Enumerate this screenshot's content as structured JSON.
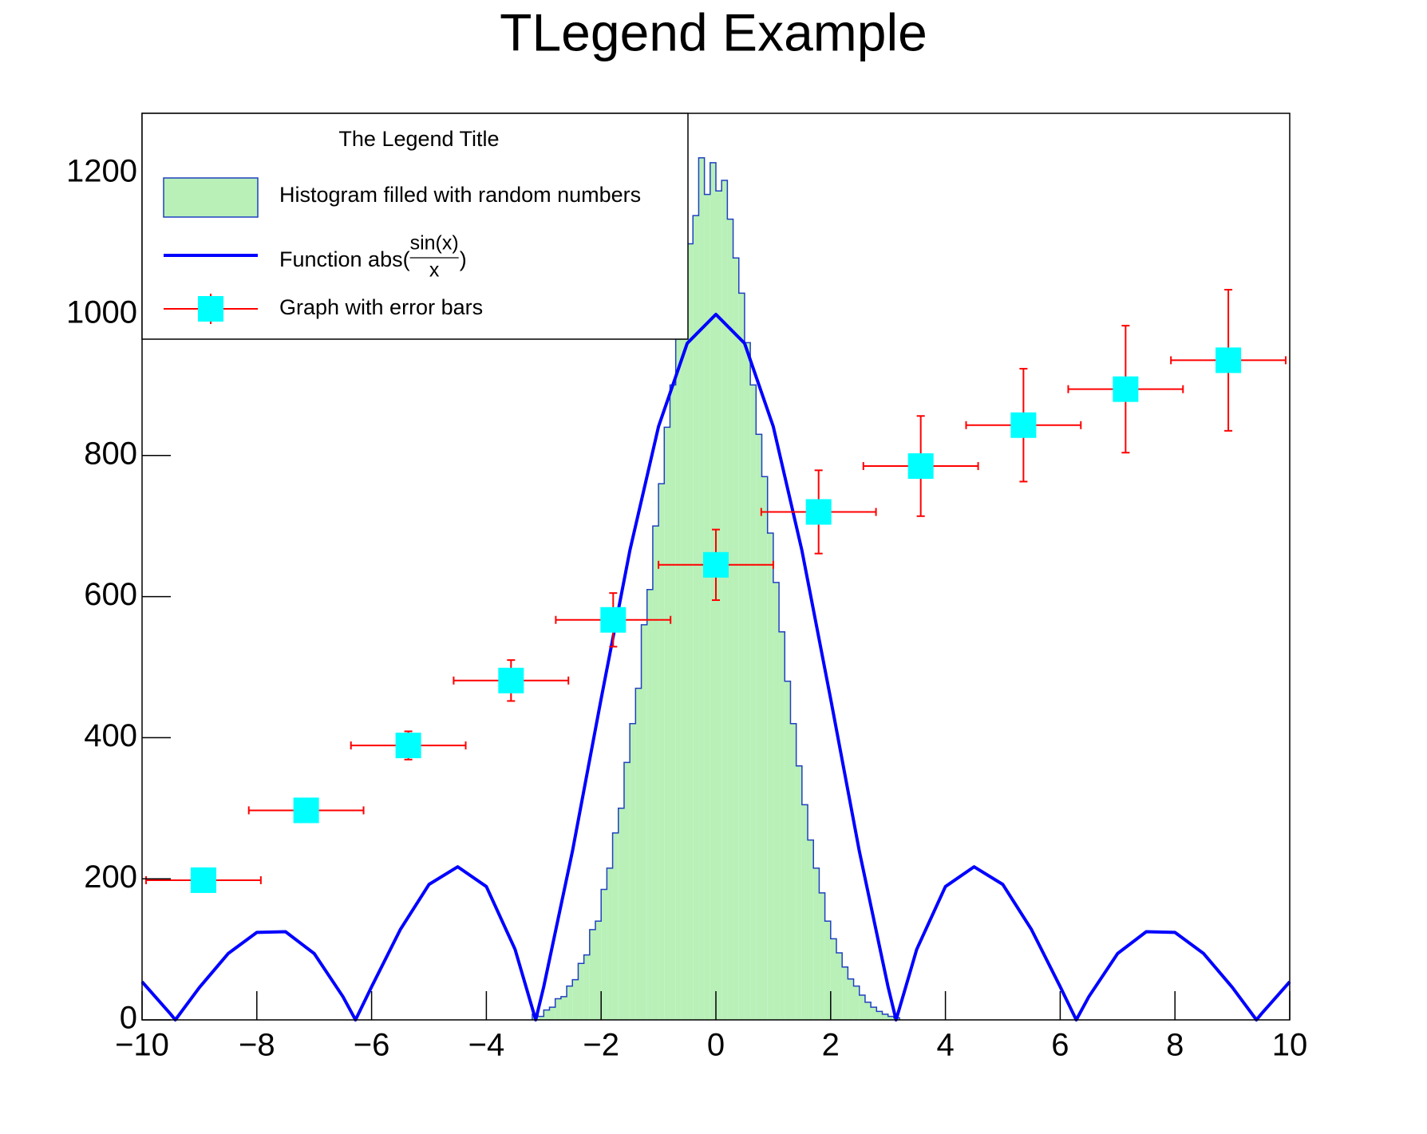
{
  "chart_data": [
    {
      "type": "histogram",
      "title": "TLegend Example",
      "bins": [
        -3.2,
        -3.1,
        -3.0,
        -2.9,
        -2.8,
        -2.7,
        -2.6,
        -2.5,
        -2.4,
        -2.3,
        -2.2,
        -2.1,
        -2.0,
        -1.9,
        -1.8,
        -1.7,
        -1.6,
        -1.5,
        -1.4,
        -1.3,
        -1.2,
        -1.1,
        -1.0,
        -0.9,
        -0.8,
        -0.7,
        -0.6,
        -0.5,
        -0.4,
        -0.3,
        -0.2,
        -0.1,
        0,
        0.1,
        0.2,
        0.3,
        0.4,
        0.5,
        0.6,
        0.7,
        0.8,
        0.9,
        1.0,
        1.1,
        1.2,
        1.3,
        1.4,
        1.5,
        1.6,
        1.7,
        1.8,
        1.9,
        2.0,
        2.1,
        2.2,
        2.3,
        2.4,
        2.5,
        2.6,
        2.7,
        2.8,
        2.9,
        3.0,
        3.1,
        3.2
      ],
      "values": [
        8,
        5,
        14,
        18,
        30,
        33,
        48,
        57,
        80,
        92,
        128,
        140,
        185,
        215,
        265,
        300,
        365,
        420,
        470,
        560,
        610,
        700,
        760,
        840,
        900,
        965,
        1050,
        1100,
        1140,
        1222,
        1170,
        1215,
        1175,
        1190,
        1135,
        1080,
        1030,
        960,
        900,
        830,
        770,
        690,
        620,
        550,
        480,
        420,
        360,
        305,
        255,
        215,
        180,
        140,
        115,
        95,
        75,
        58,
        48,
        35,
        25,
        18,
        12,
        8,
        5,
        3
      ],
      "name": "Histogram filled with random numbers",
      "color": "#b8f0b8",
      "edge_color": "#2040c0",
      "xlim": [
        -10,
        10
      ],
      "ylim": [
        0,
        1285
      ],
      "xticks": [
        {
          "value": -10,
          "label": "−10"
        },
        {
          "value": -8,
          "label": "−8"
        },
        {
          "value": -6,
          "label": "−6"
        },
        {
          "value": -4,
          "label": "−4"
        },
        {
          "value": -2,
          "label": "−2"
        },
        0,
        2,
        4,
        6,
        8,
        10
      ],
      "yticks": [
        0,
        200,
        400,
        600,
        800,
        1000,
        1200
      ]
    },
    {
      "type": "line",
      "name_parts": [
        "Function abs(",
        "sin(x)",
        "x",
        ")"
      ],
      "color": "#0000ff",
      "x": [
        -10,
        -9.5,
        -9.42,
        -9,
        -8.5,
        -8,
        -7.5,
        -7,
        -6.5,
        -6.28,
        -6,
        -5.5,
        -5,
        -4.5,
        -4,
        -3.5,
        -3.14,
        -3,
        -2.5,
        -2,
        -1.5,
        -1,
        -0.5,
        0,
        0.5,
        1,
        1.5,
        2,
        2.5,
        3,
        3.14,
        3.5,
        4,
        4.5,
        5,
        5.5,
        6,
        6.28,
        6.5,
        7,
        7.5,
        8,
        8.5,
        9,
        9.42,
        9.5,
        10
      ],
      "values": [
        54,
        8,
        0,
        46,
        94,
        124,
        125,
        94,
        33,
        0,
        47,
        128,
        192,
        217,
        189,
        100,
        0,
        47,
        239,
        455,
        665,
        841,
        959,
        1000,
        959,
        841,
        665,
        455,
        239,
        47,
        0,
        100,
        189,
        217,
        192,
        128,
        47,
        0,
        33,
        94,
        125,
        124,
        94,
        46,
        0,
        8,
        54
      ]
    },
    {
      "type": "scatter",
      "name": "Graph with error bars",
      "color": "#00ffff",
      "error_color": "#ff0000",
      "x": [
        -8.93,
        -7.14,
        -5.36,
        -3.57,
        -1.79,
        0,
        1.79,
        3.57,
        5.36,
        7.14,
        8.93
      ],
      "values": [
        198,
        297,
        389,
        481,
        567,
        645,
        720,
        785,
        843,
        894,
        935
      ],
      "x_errors": [
        1,
        1,
        1,
        1,
        1,
        1,
        1,
        1,
        1,
        1,
        1
      ],
      "errors": [
        5,
        10,
        20,
        29,
        38,
        50,
        59,
        71,
        80,
        90,
        100
      ]
    },
    {
      "type": "legend",
      "title": "The Legend Title"
    }
  ]
}
